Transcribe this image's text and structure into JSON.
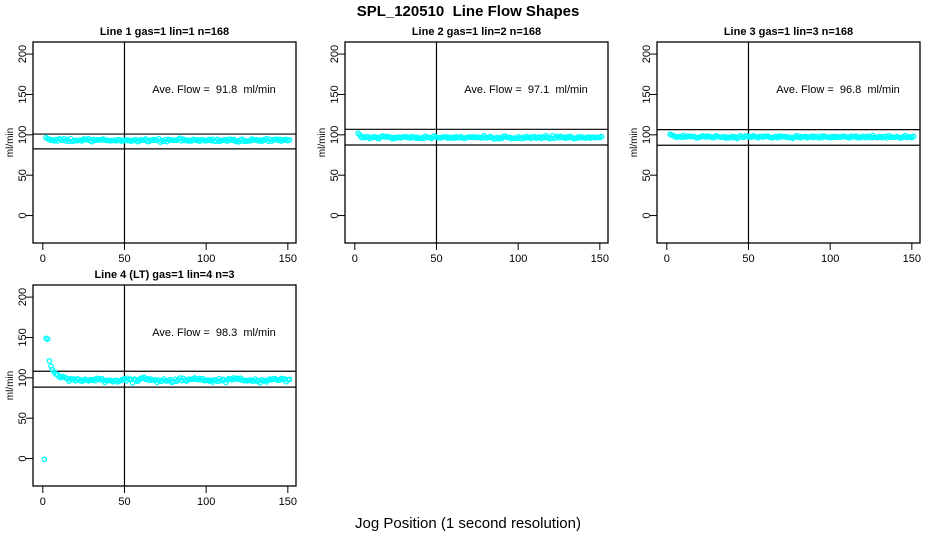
{
  "page": {
    "title": "SPL_120510  Line Flow Shapes",
    "xlabel": "Jog Position (1 second resolution)"
  },
  "colors": {
    "marker": "#00FFFF",
    "axis": "#000000",
    "background": "#FFFFFF"
  },
  "chart_data": [
    {
      "type": "scatter",
      "title": "Line 1 gas=1 lin=1 n=168",
      "annotation": "Ave. Flow =  91.8  ml/min",
      "ave_flow_ml_min": 91.8,
      "n_points": 168,
      "ylabel": "ml/min",
      "x_ticks": [
        0,
        50,
        100,
        150
      ],
      "y_ticks": [
        0,
        50,
        100,
        150,
        200
      ],
      "xlim": [
        -6,
        155
      ],
      "ylim": [
        -34,
        215
      ],
      "grid": false,
      "vline_x": 50,
      "hlines": [
        100.98,
        82.62
      ],
      "hlines_note": "average flow +10% and -10%",
      "marker": "open-circle",
      "series": {
        "x_start": 2,
        "x_end": 151,
        "x_step": 1,
        "y_level": 93.2,
        "y_jitter": 1.0,
        "y_first": [
          96.5,
          95.0
        ],
        "decay_amp": 2.0,
        "decay_tau": 3.0,
        "wiggle_amp": 0,
        "wiggle_len": 1,
        "outliers": []
      },
      "annotation_pos": {
        "x": 105,
        "y": 150
      }
    },
    {
      "type": "scatter",
      "title": "Line 2 gas=1 lin=2 n=168",
      "annotation": "Ave. Flow =  97.1  ml/min",
      "ave_flow_ml_min": 97.1,
      "n_points": 168,
      "ylabel": "ml/min",
      "x_ticks": [
        0,
        50,
        100,
        150
      ],
      "y_ticks": [
        0,
        50,
        100,
        150,
        200
      ],
      "xlim": [
        -6,
        155
      ],
      "ylim": [
        -34,
        215
      ],
      "grid": false,
      "vline_x": 50,
      "hlines": [
        106.81,
        87.39
      ],
      "hlines_note": "average flow +10% and -10%",
      "marker": "open-circle",
      "series": {
        "x_start": 2,
        "x_end": 151,
        "x_step": 1,
        "y_level": 96.7,
        "y_jitter": 0.9,
        "y_first": [
          102.0,
          100.0
        ],
        "decay_amp": 2.0,
        "decay_tau": 4.0,
        "wiggle_amp": 0,
        "wiggle_len": 1,
        "outliers": []
      },
      "annotation_pos": {
        "x": 105,
        "y": 150
      }
    },
    {
      "type": "scatter",
      "title": "Line 3 gas=1 lin=3 n=168",
      "annotation": "Ave. Flow =  96.8  ml/min",
      "ave_flow_ml_min": 96.8,
      "n_points": 168,
      "ylabel": "ml/min",
      "x_ticks": [
        0,
        50,
        100,
        150
      ],
      "y_ticks": [
        0,
        50,
        100,
        150,
        200
      ],
      "xlim": [
        -6,
        155
      ],
      "ylim": [
        -34,
        215
      ],
      "grid": false,
      "vline_x": 50,
      "hlines": [
        106.48,
        87.12
      ],
      "hlines_note": "average flow +10% and -10%",
      "marker": "open-circle",
      "series": {
        "x_start": 2,
        "x_end": 151,
        "x_step": 1,
        "y_level": 97.3,
        "y_jitter": 0.8,
        "y_first": [
          100.5,
          99.5
        ],
        "decay_amp": 2.5,
        "decay_tau": 5.0,
        "wiggle_amp": 0,
        "wiggle_len": 1,
        "outliers": []
      },
      "annotation_pos": {
        "x": 105,
        "y": 150
      }
    },
    {
      "type": "scatter",
      "title": "Line 4 (LT) gas=1 lin=4 n=3",
      "annotation": "Ave. Flow =  98.3  ml/min",
      "ave_flow_ml_min": 98.3,
      "n_points": 3,
      "ylabel": "ml/min",
      "x_ticks": [
        0,
        50,
        100,
        150
      ],
      "y_ticks": [
        0,
        50,
        100,
        150,
        200
      ],
      "xlim": [
        -6,
        155
      ],
      "ylim": [
        -34,
        215
      ],
      "grid": false,
      "vline_x": 50,
      "hlines": [
        108.13,
        88.47
      ],
      "hlines_note": "average flow +10% and -10%",
      "marker": "open-circle",
      "series": {
        "x_start": 5,
        "x_end": 151,
        "x_step": 1,
        "y_level": 97.4,
        "y_jitter": 1.3,
        "y_first": [],
        "decay_amp": 15.0,
        "decay_tau": 3.5,
        "wiggle_amp": 0.8,
        "wiggle_len": 28,
        "outliers": [
          [
            1,
            -1
          ],
          [
            2,
            149
          ],
          [
            3,
            148
          ],
          [
            4,
            121
          ]
        ]
      },
      "annotation_pos": {
        "x": 105,
        "y": 150
      }
    }
  ]
}
